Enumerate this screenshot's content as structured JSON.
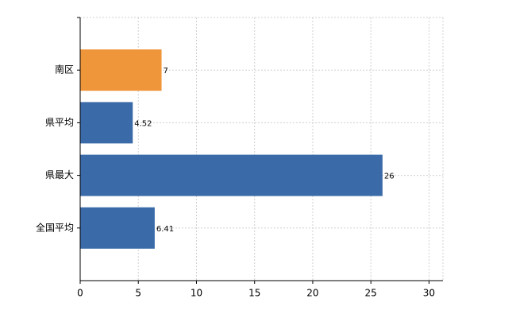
{
  "chart_data": {
    "type": "barh",
    "categories": [
      "南区",
      "県平均",
      "県最大",
      "全国平均"
    ],
    "values": [
      7,
      4.52,
      26,
      6.41
    ],
    "colors": [
      "#f0963a",
      "#3a6aa8",
      "#3a6aa8",
      "#3a6aa8"
    ],
    "xlim": [
      0,
      31.2
    ],
    "xticks": [
      0,
      5,
      10,
      15,
      20,
      25,
      30
    ],
    "grid": true
  }
}
